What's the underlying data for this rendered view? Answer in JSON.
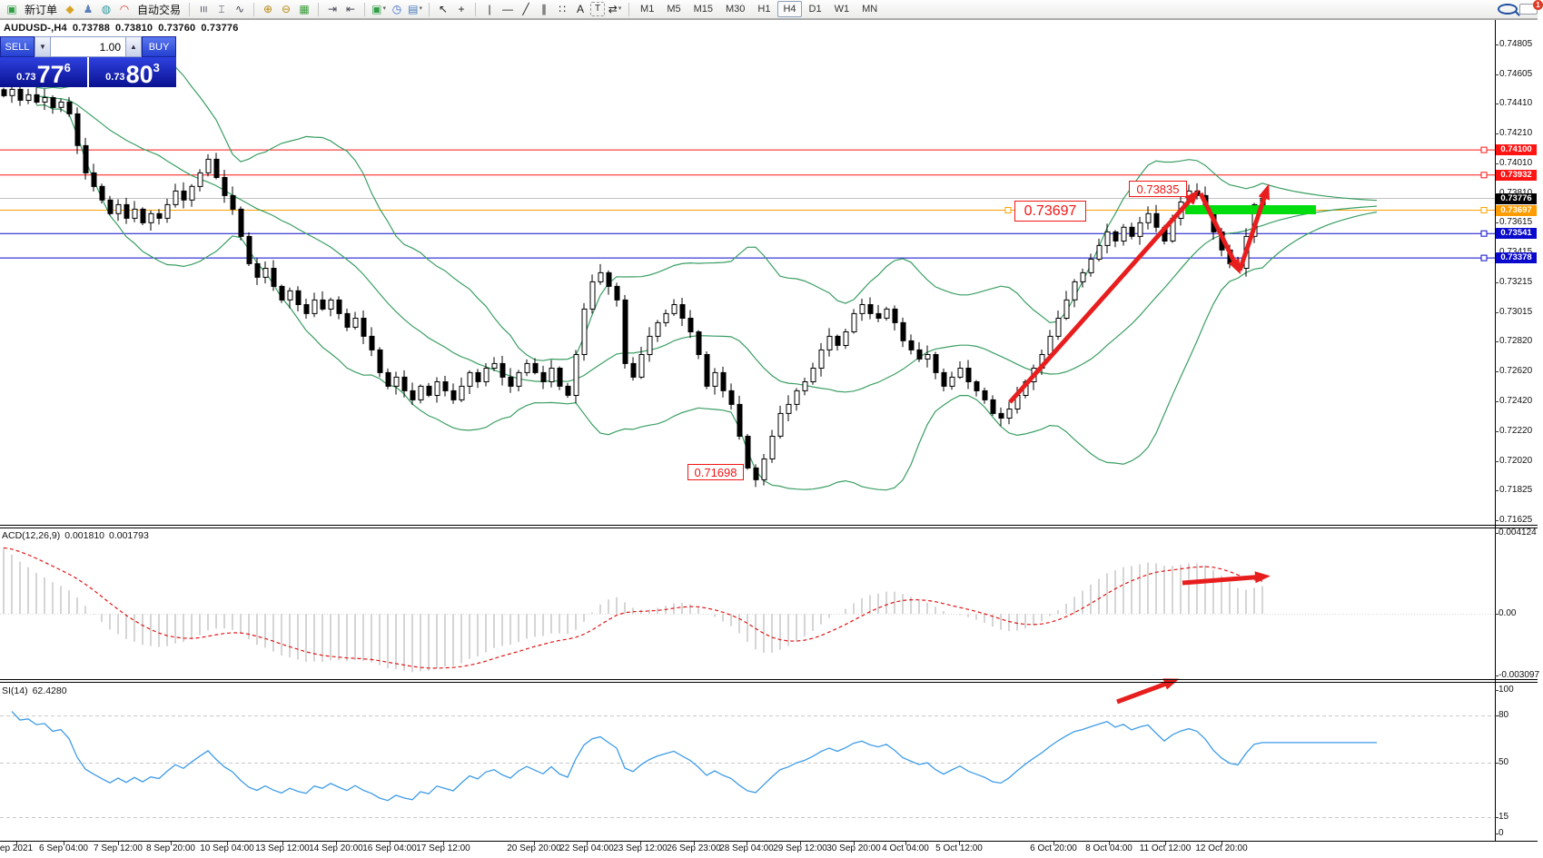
{
  "toolbar": {
    "new_order_label": "新订单",
    "autotrade_label": "自动交易",
    "chat_badge": "1",
    "active_timeframe": "H4",
    "items": [
      {
        "type": "icon",
        "name": "new-order-icon",
        "glyph": "▣",
        "color": "#2f9e44"
      },
      {
        "type": "label",
        "name": "new-order-label",
        "text": "新订单"
      },
      {
        "type": "icon",
        "name": "book-icon",
        "glyph": "◆",
        "color": "#d9a425"
      },
      {
        "type": "icon",
        "name": "profile-icon",
        "glyph": "♟",
        "color": "#5b7fb9"
      },
      {
        "type": "icon",
        "name": "signal-icon",
        "glyph": "◍",
        "color": "#2c9aa0"
      },
      {
        "type": "icon",
        "name": "autotrade-icon",
        "glyph": "◠",
        "color": "#d03a2a"
      },
      {
        "type": "label",
        "name": "autotrade-label",
        "text": "自动交易"
      },
      {
        "type": "sep"
      },
      {
        "type": "icon",
        "name": "bar-chart-icon",
        "glyph": "☰",
        "color": "#445",
        "cls": "rot90"
      },
      {
        "type": "icon",
        "name": "candlestick-icon",
        "glyph": "⌶",
        "color": "#445"
      },
      {
        "type": "icon",
        "name": "line-chart-icon",
        "glyph": "∿",
        "color": "#445"
      },
      {
        "type": "sep"
      },
      {
        "type": "icon",
        "name": "zoom-in-icon",
        "glyph": "⊕",
        "color": "#b8860b"
      },
      {
        "type": "icon",
        "name": "zoom-out-icon",
        "glyph": "⊖",
        "color": "#b8860b"
      },
      {
        "type": "icon",
        "name": "tile-windows-icon",
        "glyph": "▦",
        "color": "#3a9d3a"
      },
      {
        "type": "sep"
      },
      {
        "type": "icon",
        "name": "autoscroll-icon",
        "glyph": "⇥",
        "color": "#445"
      },
      {
        "type": "icon",
        "name": "chart-shift-icon",
        "glyph": "⇤",
        "color": "#445"
      },
      {
        "type": "sep"
      },
      {
        "type": "icon",
        "name": "new-chart-icon",
        "glyph": "▣",
        "color": "#2f9e44",
        "caret": true
      },
      {
        "type": "icon",
        "name": "clock-icon",
        "glyph": "◷",
        "color": "#3366cc"
      },
      {
        "type": "icon",
        "name": "template-icon",
        "glyph": "▤",
        "color": "#4a7dbd",
        "caret": true
      },
      {
        "type": "sep"
      },
      {
        "type": "icon",
        "name": "cursor-icon",
        "glyph": "↖",
        "color": "#222"
      },
      {
        "type": "icon",
        "name": "crosshair-icon",
        "glyph": "+",
        "color": "#222"
      },
      {
        "type": "sep"
      },
      {
        "type": "icon",
        "name": "vertical-line-icon",
        "glyph": "|",
        "color": "#222"
      },
      {
        "type": "icon",
        "name": "horizontal-line-icon",
        "glyph": "—",
        "color": "#222"
      },
      {
        "type": "icon",
        "name": "trendline-icon",
        "glyph": "╱",
        "color": "#222"
      },
      {
        "type": "icon",
        "name": "equidistant-channel-icon",
        "glyph": "∥",
        "color": "#222"
      },
      {
        "type": "icon",
        "name": "fibonacci-icon",
        "glyph": "∷",
        "color": "#222"
      },
      {
        "type": "icon",
        "name": "text-icon",
        "glyph": "A",
        "color": "#222"
      },
      {
        "type": "icon",
        "name": "text-label-icon",
        "glyph": "T",
        "color": "#222",
        "cls": "boxed"
      },
      {
        "type": "icon",
        "name": "arrows-icon",
        "glyph": "⇄",
        "color": "#222",
        "caret": true
      },
      {
        "type": "sep"
      },
      {
        "type": "tf",
        "text": "M1"
      },
      {
        "type": "tf",
        "text": "M5"
      },
      {
        "type": "tf",
        "text": "M15"
      },
      {
        "type": "tf",
        "text": "M30"
      },
      {
        "type": "tf",
        "text": "H1"
      },
      {
        "type": "tf",
        "text": "H4"
      },
      {
        "type": "tf",
        "text": "D1"
      },
      {
        "type": "tf",
        "text": "W1"
      },
      {
        "type": "tf",
        "text": "MN"
      },
      {
        "type": "spacer"
      },
      {
        "type": "icon",
        "name": "search-icon",
        "cls": "ico-search"
      },
      {
        "type": "icon",
        "name": "chat-icon",
        "cls": "ico-chat",
        "badge": "1"
      }
    ]
  },
  "quote_header": {
    "symbol": "AUDUSD-,H4",
    "open": "0.73788",
    "high": "0.73810",
    "low": "0.73760",
    "close": "0.73776"
  },
  "trade_panel": {
    "sell_label": "SELL",
    "buy_label": "BUY",
    "volume": "1.00",
    "sell_price_small": "0.73",
    "sell_price_big": "77",
    "sell_price_sup": "6",
    "buy_price_small": "0.73",
    "buy_price_big": "80",
    "buy_price_sup": "3"
  },
  "annotations": {
    "high_label": "0.73835",
    "mid_label": "0.73697",
    "low_label": "0.71698"
  },
  "macd_panel": {
    "name": "ACD(12,26,9)",
    "value_main": "0.001810",
    "value_signal": "0.001793"
  },
  "rsi_panel": {
    "name": "SI(14)",
    "value": "62.4280"
  },
  "chart_data": {
    "type": "candlestick",
    "symbol": "AUDUSD",
    "timeframe": "H4",
    "current_bar": {
      "open": 0.73788,
      "high": 0.7381,
      "low": 0.7376,
      "close": 0.73776
    },
    "bid": 0.73776,
    "ask": 0.73803,
    "ylim": [
      0.71625,
      0.74805
    ],
    "closes": [
      0.74463,
      0.74505,
      0.74432,
      0.74469,
      0.7442,
      0.7445,
      0.74384,
      0.7442,
      0.74341,
      0.74129,
      0.73947,
      0.73856,
      0.73765,
      0.73674,
      0.73734,
      0.73643,
      0.73704,
      0.73613,
      0.73674,
      0.73643,
      0.73734,
      0.73825,
      0.73765,
      0.73856,
      0.73947,
      0.74038,
      0.73916,
      0.73795,
      0.73704,
      0.73522,
      0.7334,
      0.73249,
      0.73309,
      0.73188,
      0.73097,
      0.73158,
      0.73066,
      0.73006,
      0.73097,
      0.73036,
      0.73097,
      0.73006,
      0.72915,
      0.72975,
      0.72854,
      0.72763,
      0.72611,
      0.7252,
      0.72581,
      0.7249,
      0.72429,
      0.7252,
      0.72459,
      0.7255,
      0.7249,
      0.72429,
      0.7252,
      0.72611,
      0.7255,
      0.72641,
      0.72672,
      0.72581,
      0.7252,
      0.72611,
      0.72672,
      0.72611,
      0.7255,
      0.72641,
      0.7252,
      0.72459,
      0.72732,
      0.73036,
      0.73218,
      0.73279,
      0.73188,
      0.73097,
      0.72672,
      0.72581,
      0.72732,
      0.72854,
      0.72945,
      0.73006,
      0.73066,
      0.72975,
      0.72884,
      0.72732,
      0.7252,
      0.72611,
      0.7249,
      0.72399,
      0.72186,
      0.71974,
      0.71895,
      0.72034,
      0.72186,
      0.72338,
      0.72399,
      0.7249,
      0.7255,
      0.72641,
      0.72763,
      0.72854,
      0.72793,
      0.72884,
      0.73006,
      0.73066,
      0.73006,
      0.72975,
      0.73036,
      0.72945,
      0.72824,
      0.72763,
      0.72702,
      0.72732,
      0.72611,
      0.7252,
      0.72581,
      0.72641,
      0.7255,
      0.7249,
      0.72429,
      0.72338,
      0.72307,
      0.72368,
      0.72459,
      0.7255,
      0.72641,
      0.72732,
      0.72854,
      0.72975,
      0.73097,
      0.73218,
      0.73279,
      0.7337,
      0.73461,
      0.73552,
      0.73491,
      0.73583,
      0.73522,
      0.73613,
      0.73674,
      0.73583,
      0.73491,
      0.73643,
      0.73752,
      0.73825,
      0.73795,
      0.73704,
      0.73552,
      0.73431,
      0.7334,
      0.73309,
      0.73522,
      0.73734,
      0.73777
    ],
    "horizontal_levels": [
      {
        "price": 0.741,
        "color": "#ff1414",
        "badge": "0.74100",
        "badge_bg": "#ff1414"
      },
      {
        "price": 0.73932,
        "color": "#ff1414",
        "badge": "0.73932",
        "badge_bg": "#ff1414"
      },
      {
        "price": 0.73776,
        "color": "#c0c0c0",
        "badge": "0.73776",
        "badge_bg": "#000000"
      },
      {
        "price": 0.73697,
        "color": "#ffa200",
        "badge": "0.73697",
        "badge_bg": "#ff9d00"
      },
      {
        "price": 0.73541,
        "color": "#0a0acc",
        "badge": "0.73541",
        "badge_bg": "#0a0acc"
      },
      {
        "price": 0.73378,
        "color": "#0a0acc",
        "badge": "0.73378",
        "badge_bg": "#0a0acc"
      }
    ],
    "price_axis": {
      "ticks": [
        [
          "0.74805",
          49
        ],
        [
          "0.74605",
          82
        ],
        [
          "0.74410",
          114
        ],
        [
          "0.74210",
          147
        ],
        [
          "0.74010",
          180
        ],
        [
          "0.73810",
          213
        ],
        [
          "0.73615",
          245
        ],
        [
          "0.73415",
          278
        ],
        [
          "0.73215",
          311
        ],
        [
          "0.73015",
          344
        ],
        [
          "0.72820",
          376
        ],
        [
          "0.72620",
          409
        ],
        [
          "0.72420",
          442
        ],
        [
          "0.72220",
          475
        ],
        [
          "0.72020",
          508
        ],
        [
          "0.71825",
          540
        ],
        [
          "0.71625",
          573
        ]
      ]
    },
    "time_axis": [
      {
        "t": "ep 2021",
        "x": 18
      },
      {
        "t": "6 Sep 04:00",
        "x": 70
      },
      {
        "t": "7 Sep 12:00",
        "x": 130
      },
      {
        "t": "8 Sep 20:00",
        "x": 188
      },
      {
        "t": "10 Sep 04:00",
        "x": 250
      },
      {
        "t": "13 Sep 12:00",
        "x": 311
      },
      {
        "t": "14 Sep 20:00",
        "x": 370
      },
      {
        "t": "16 Sep 04:00",
        "x": 429
      },
      {
        "t": "17 Sep 12:00",
        "x": 488
      },
      {
        "t": "20 Sep 20:00",
        "x": 588
      },
      {
        "t": "22 Sep 04:00",
        "x": 646
      },
      {
        "t": "23 Sep 12:00",
        "x": 705
      },
      {
        "t": "26 Sep 23:00",
        "x": 764
      },
      {
        "t": "28 Sep 04:00",
        "x": 822
      },
      {
        "t": "29 Sep 12:00",
        "x": 881
      },
      {
        "t": "30 Sep 20:00",
        "x": 940
      },
      {
        "t": "4 Oct 04:00",
        "x": 997
      },
      {
        "t": "5 Oct 12:00",
        "x": 1056
      },
      {
        "t": "6 Oct 20:00",
        "x": 1160
      },
      {
        "t": "8 Oct 04:00",
        "x": 1221
      },
      {
        "t": "11 Oct 12:00",
        "x": 1283
      },
      {
        "t": "12 Oct 20:00",
        "x": 1345
      }
    ],
    "indicators": {
      "macd": {
        "params": "12,26,9",
        "main": 0.00181,
        "signal": 0.001793,
        "scale": [
          [
            "0.004124",
            587
          ],
          [
            "0.00",
            676
          ],
          [
            "-0.003097",
            744
          ]
        ]
      },
      "rsi": {
        "params": "14",
        "value": 62.428,
        "scale": [
          [
            "100",
            760
          ],
          [
            "80",
            788
          ],
          [
            "50",
            840
          ],
          [
            "15",
            900
          ],
          [
            "0",
            918
          ]
        ],
        "dashed_levels": [
          788,
          840,
          900
        ]
      },
      "bollinger_bands": {
        "visible": true,
        "color": "#3a9e63"
      }
    },
    "annotations": {
      "price_labels": [
        0.73835,
        0.73697,
        0.71698
      ],
      "highlight_bar": {
        "x": 1305,
        "y": 226,
        "w": 144,
        "h": 10,
        "color": "#00dd0e"
      },
      "arrows": [
        {
          "pts": [
            [
              1112,
              443
            ],
            [
              1316,
              214
            ]
          ],
          "panel": "main"
        },
        {
          "pts": [
            [
              1322,
              213
            ],
            [
              1363,
              296
            ]
          ],
          "panel": "main"
        },
        {
          "pts": [
            [
              1365,
              298
            ],
            [
              1395,
              209
            ]
          ],
          "panel": "main"
        },
        {
          "pts": [
            [
              1302,
              642
            ],
            [
              1392,
              635
            ]
          ],
          "panel": "macd"
        },
        {
          "pts": [
            [
              1230,
              773
            ],
            [
              1292,
              750
            ]
          ],
          "panel": "rsi"
        }
      ],
      "arrow_color": "#e81e1e"
    }
  }
}
